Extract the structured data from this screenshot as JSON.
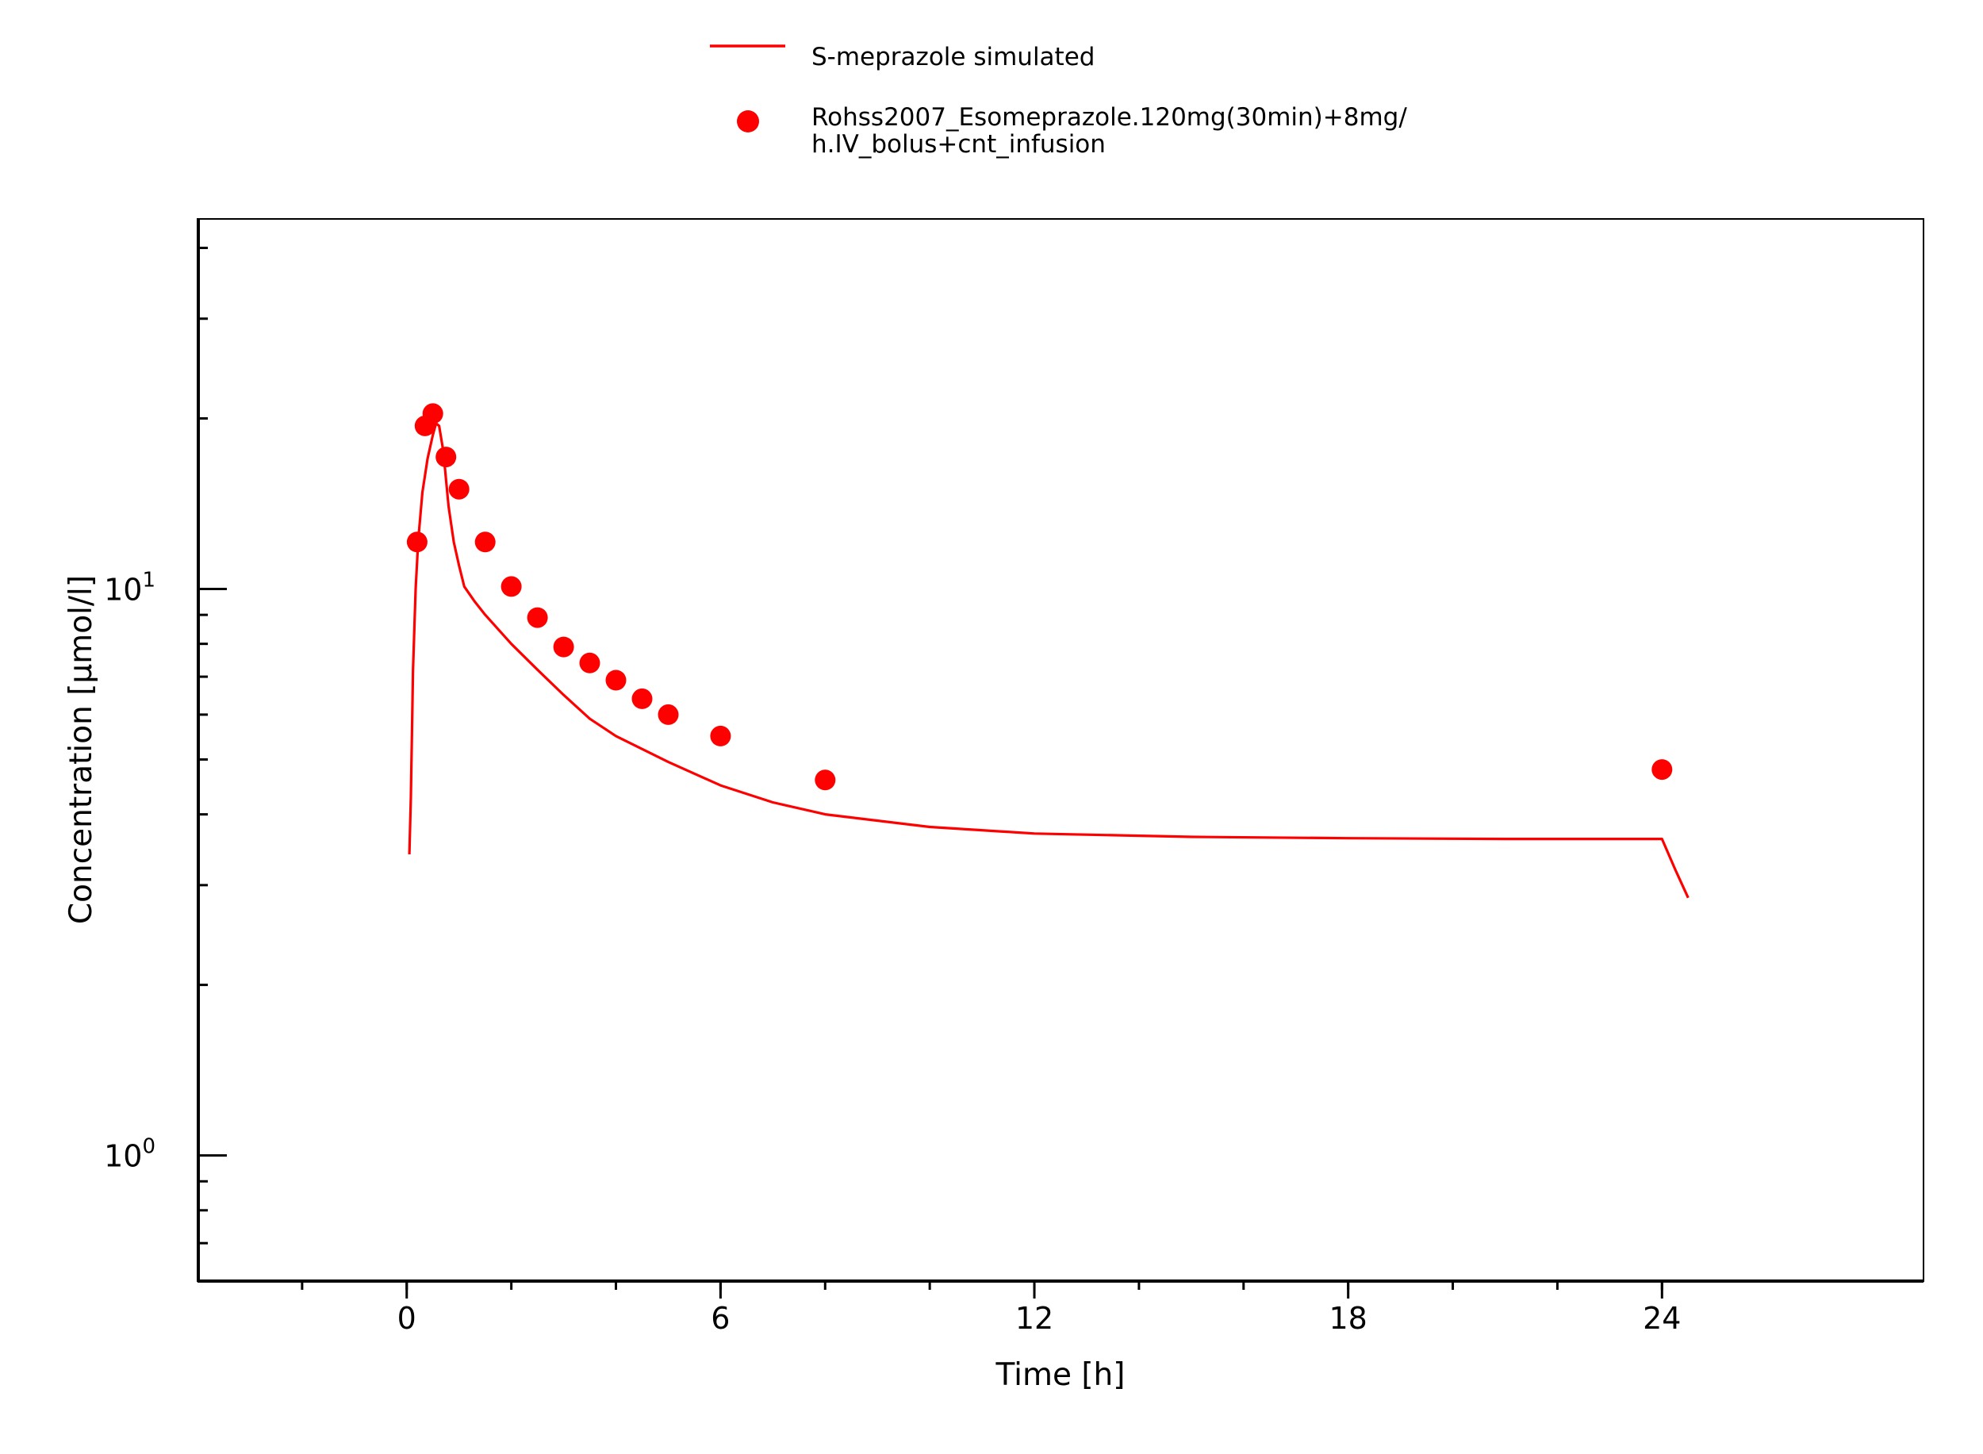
{
  "chart_data": {
    "type": "line",
    "title": "",
    "xlabel": "Time [h]",
    "ylabel": "Concentration [µmol/l]",
    "xlim": [
      -4,
      29
    ],
    "ylim": [
      0.6,
      45
    ],
    "yscale": "log",
    "grid": false,
    "legend_position": "top-center",
    "colors": {
      "series": "#ff0000",
      "axis": "#000000"
    },
    "x_ticks": [
      {
        "value": 0,
        "label": "0"
      },
      {
        "value": 6,
        "label": "6"
      },
      {
        "value": 12,
        "label": "12"
      },
      {
        "value": 18,
        "label": "18"
      },
      {
        "value": 24,
        "label": "24"
      }
    ],
    "y_ticks": [
      {
        "value": 1,
        "base": "10",
        "exp": "0"
      },
      {
        "value": 10,
        "base": "10",
        "exp": "1"
      }
    ],
    "series": [
      {
        "name": "S-meprazole simulated",
        "kind": "line",
        "color": "#ff0000",
        "x": [
          0.05,
          0.08,
          0.12,
          0.17,
          0.22,
          0.3,
          0.4,
          0.5,
          0.56,
          0.62,
          0.7,
          0.8,
          0.9,
          1.0,
          1.1,
          1.3,
          1.5,
          2.0,
          2.5,
          3.0,
          3.5,
          4.0,
          5.0,
          6.0,
          7.0,
          8.0,
          10.0,
          12.0,
          15.0,
          18.0,
          21.0,
          23.0,
          24.0,
          24.25,
          24.5
        ],
        "y": [
          3.4,
          4.3,
          7.2,
          10.0,
          12.2,
          14.8,
          17.0,
          18.7,
          19.6,
          19.4,
          17.5,
          14.0,
          12.1,
          11.0,
          10.1,
          9.5,
          9.0,
          8.0,
          7.2,
          6.5,
          5.9,
          5.5,
          4.95,
          4.5,
          4.2,
          4.0,
          3.8,
          3.7,
          3.65,
          3.63,
          3.62,
          3.62,
          3.62,
          3.2,
          2.85
        ]
      },
      {
        "name": "Rohss2007_Esomeprazole.120mg(30min)+8mg/h.IV_bolus+cnt_infusion",
        "kind": "scatter",
        "color": "#ff0000",
        "x": [
          0.2,
          0.35,
          0.5,
          0.75,
          1.0,
          1.5,
          2.0,
          2.5,
          3.0,
          3.5,
          4.0,
          4.5,
          5.0,
          6.0,
          8.0,
          24.0
        ],
        "y": [
          12.1,
          19.4,
          20.4,
          17.1,
          15.0,
          12.1,
          10.1,
          8.9,
          7.9,
          7.4,
          6.9,
          6.4,
          6.0,
          5.5,
          4.6,
          4.8
        ]
      }
    ]
  },
  "legend": {
    "line_label": "S-meprazole simulated",
    "scatter_label_line1": "Rohss2007_Esomeprazole.120mg(30min)+8mg/",
    "scatter_label_line2": "h.IV_bolus+cnt_infusion"
  }
}
